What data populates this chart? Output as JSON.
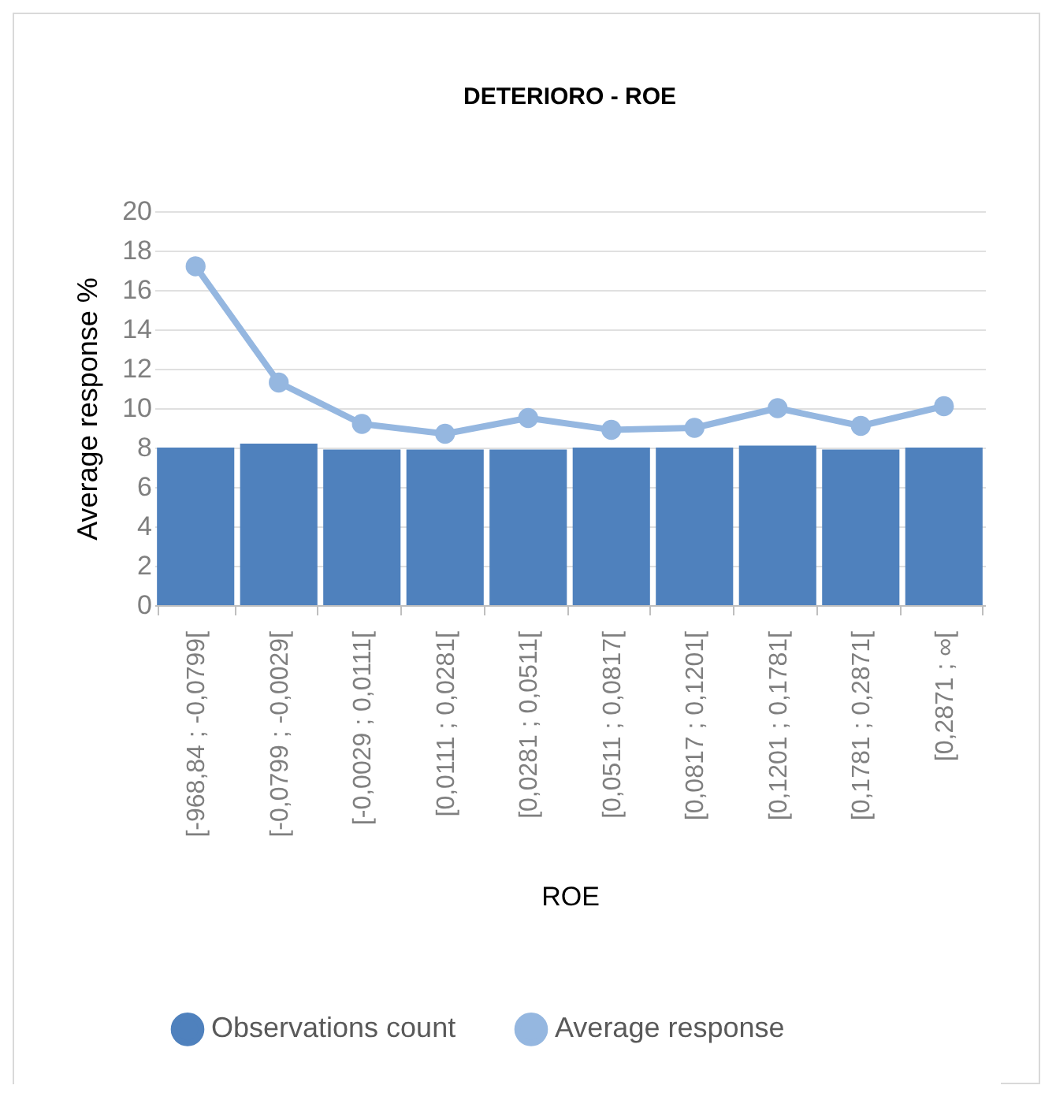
{
  "chart_data": {
    "type": "bar",
    "title": "DETERIORO - ROE",
    "xlabel": "ROE",
    "ylabel": "Average response %",
    "categories": [
      "[-968,84 ; -0,0799[",
      "[-0,0799 ; -0,0029[",
      "[-0,0029 ; 0,0111[",
      "[0,0111 ; 0,0281[",
      "[0,0281 ; 0,0511[",
      "[0,0511 ; 0,0817[",
      "[0,0817 ; 0,1201[",
      "[0,1201 ; 0,1781[",
      "[0,1781 ; 0,2871[",
      "[0,2871 ; ∞["
    ],
    "series": [
      {
        "name": "Observations count",
        "color": "#4f81bd",
        "values": [
          8.0,
          8.2,
          7.9,
          7.9,
          7.9,
          8.0,
          8.0,
          8.1,
          7.9,
          8.0
        ]
      },
      {
        "name": "Average response",
        "type": "line",
        "color": "#95b7e0",
        "values": [
          17.2,
          11.3,
          9.2,
          8.7,
          9.5,
          8.9,
          9.0,
          10.0,
          9.1,
          10.1
        ]
      }
    ],
    "ylim": [
      0,
      20
    ],
    "yticks": [
      0,
      2,
      4,
      6,
      8,
      10,
      12,
      14,
      16,
      18,
      20
    ],
    "grid": "y",
    "legend": "bottom",
    "marker": "circle",
    "line_style": "solid"
  }
}
